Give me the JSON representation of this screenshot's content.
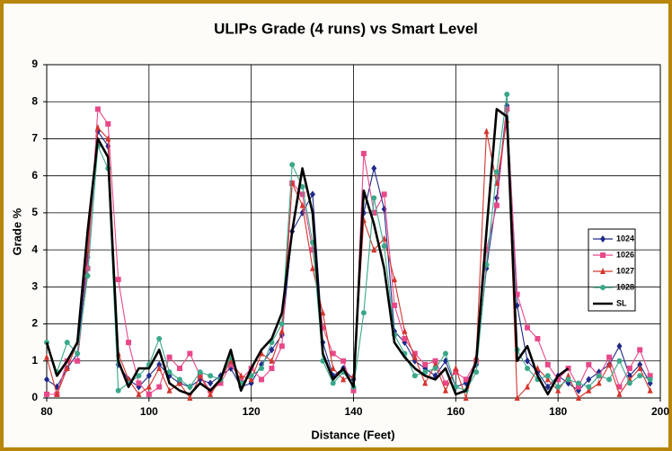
{
  "chart_data": {
    "type": "line",
    "title": "ULIPs Grade (4 runs) vs Smart Level",
    "xlabel": "Distance (Feet)",
    "ylabel": "Grade %",
    "x": [
      80,
      82,
      84,
      86,
      88,
      90,
      92,
      94,
      96,
      98,
      100,
      102,
      104,
      106,
      108,
      110,
      112,
      114,
      116,
      118,
      120,
      122,
      124,
      126,
      128,
      130,
      132,
      134,
      136,
      138,
      140,
      142,
      144,
      146,
      148,
      150,
      152,
      154,
      156,
      158,
      160,
      162,
      164,
      166,
      168,
      170,
      172,
      174,
      176,
      178,
      180,
      182,
      184,
      186,
      188,
      190,
      192,
      194,
      196,
      198
    ],
    "xlim": [
      80,
      200
    ],
    "xticks": [
      80,
      100,
      120,
      140,
      160,
      180,
      200
    ],
    "ylim": [
      0,
      9
    ],
    "yticks": [
      0,
      1,
      2,
      3,
      4,
      5,
      6,
      7,
      8,
      9
    ],
    "grid": true,
    "legend": "right",
    "series": [
      {
        "name": "1024",
        "color": "#1f2a8a",
        "marker": "diamond",
        "values": [
          0.5,
          0.3,
          0.8,
          1.2,
          3.8,
          7.2,
          6.8,
          0.9,
          0.5,
          0.3,
          0.6,
          0.9,
          0.6,
          0.4,
          0.3,
          0.5,
          0.4,
          0.6,
          0.8,
          0.3,
          0.4,
          0.9,
          1.3,
          1.7,
          4.5,
          5.0,
          5.5,
          1.5,
          0.6,
          0.8,
          0.5,
          5.0,
          6.2,
          5.1,
          1.8,
          1.5,
          1.0,
          0.8,
          0.6,
          1.0,
          0.3,
          0.4,
          0.9,
          3.5,
          5.4,
          7.9,
          2.5,
          1.0,
          0.7,
          0.3,
          0.6,
          0.4,
          0.2,
          0.5,
          0.7,
          0.9,
          1.4,
          0.6,
          0.9,
          0.4
        ]
      },
      {
        "name": "1026",
        "color": "#e8488a",
        "marker": "square",
        "values": [
          0.1,
          0.1,
          1.0,
          1.0,
          3.5,
          7.8,
          7.4,
          3.2,
          1.5,
          0.4,
          0.1,
          0.3,
          1.1,
          0.8,
          1.2,
          0.6,
          0.2,
          0.4,
          0.9,
          0.5,
          0.8,
          0.5,
          0.8,
          1.4,
          5.8,
          5.5,
          4.0,
          1.9,
          1.2,
          1.0,
          0.2,
          6.6,
          5.0,
          5.5,
          2.5,
          1.6,
          1.2,
          0.9,
          1.0,
          0.4,
          0.7,
          0.5,
          1.0,
          4.0,
          5.2,
          7.8,
          2.8,
          1.9,
          1.6,
          0.9,
          0.5,
          0.8,
          0.3,
          0.9,
          0.6,
          1.1,
          0.3,
          0.8,
          1.3,
          0.6
        ]
      },
      {
        "name": "1027",
        "color": "#d4342e",
        "marker": "triangle",
        "values": [
          1.1,
          0.1,
          0.8,
          1.5,
          4.0,
          7.3,
          7.0,
          1.2,
          0.5,
          0.1,
          0.3,
          0.8,
          0.2,
          0.4,
          0.0,
          0.6,
          0.1,
          0.5,
          1.0,
          0.6,
          0.5,
          1.2,
          1.0,
          1.8,
          5.8,
          5.2,
          3.5,
          2.3,
          0.8,
          0.5,
          0.6,
          4.8,
          4.0,
          4.3,
          3.2,
          1.8,
          1.1,
          0.4,
          0.9,
          0.2,
          0.8,
          0.0,
          1.1,
          7.2,
          5.8,
          7.5,
          0.0,
          0.3,
          0.8,
          0.5,
          0.2,
          0.6,
          0.0,
          0.2,
          0.4,
          0.9,
          0.1,
          0.5,
          0.8,
          0.2
        ]
      },
      {
        "name": "1028",
        "color": "#3aa88a",
        "marker": "circle",
        "values": [
          1.5,
          0.7,
          1.5,
          1.2,
          3.3,
          6.8,
          6.2,
          0.2,
          0.4,
          0.6,
          0.9,
          1.6,
          0.7,
          0.5,
          0.3,
          0.7,
          0.6,
          0.5,
          1.1,
          0.4,
          0.6,
          0.8,
          1.5,
          2.0,
          6.3,
          5.7,
          4.2,
          1.0,
          0.4,
          0.7,
          0.3,
          2.3,
          5.4,
          4.1,
          1.7,
          1.2,
          0.6,
          0.7,
          0.8,
          1.2,
          0.3,
          0.2,
          0.7,
          3.6,
          6.1,
          8.2,
          1.3,
          0.8,
          0.5,
          0.6,
          0.3,
          0.5,
          0.4,
          0.3,
          0.6,
          0.5,
          1.0,
          0.4,
          0.6,
          0.5
        ]
      },
      {
        "name": "SL",
        "color": "#000000",
        "marker": null,
        "values": [
          1.5,
          0.6,
          1.0,
          1.5,
          4.5,
          7.0,
          6.5,
          1.0,
          0.3,
          0.8,
          0.8,
          1.3,
          0.4,
          0.2,
          0.1,
          0.4,
          0.2,
          0.5,
          1.3,
          0.2,
          0.8,
          1.3,
          1.6,
          2.3,
          4.5,
          6.2,
          5.0,
          1.2,
          0.5,
          0.8,
          0.3,
          5.6,
          4.7,
          3.5,
          1.5,
          1.1,
          0.8,
          0.6,
          0.5,
          0.8,
          0.1,
          0.2,
          1.0,
          4.5,
          7.8,
          7.6,
          1.0,
          1.4,
          0.6,
          0.1,
          0.6,
          0.8,
          null,
          null,
          null,
          null,
          null,
          null,
          null,
          null
        ]
      }
    ]
  }
}
